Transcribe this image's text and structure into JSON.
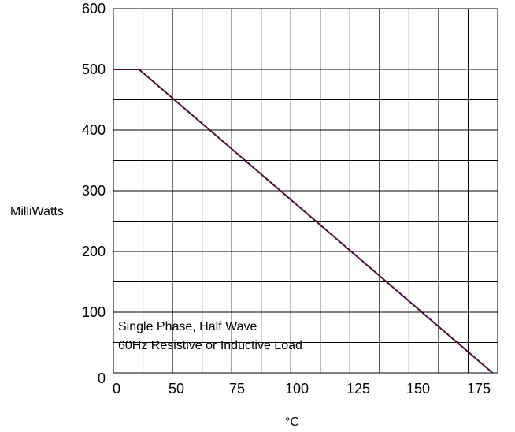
{
  "chart_data": {
    "type": "line",
    "title": "",
    "xlabel": "°C",
    "ylabel": "MilliWatts",
    "xlim": [
      25,
      175
    ],
    "ylim": [
      0,
      600
    ],
    "x_tick_labels": [
      "0",
      "50",
      "75",
      "100",
      "125",
      "150",
      "175"
    ],
    "y_tick_labels": [
      "0",
      "100",
      "200",
      "300",
      "400",
      "500",
      "600"
    ],
    "grid": true,
    "annotations": [
      "Single Phase, Half Wave",
      "60Hz Resistive or Inductive Load"
    ],
    "series": [
      {
        "color": "#4a0e3e",
        "x": [
          25,
          35,
          173
        ],
        "y": [
          500,
          500,
          0
        ]
      }
    ]
  }
}
